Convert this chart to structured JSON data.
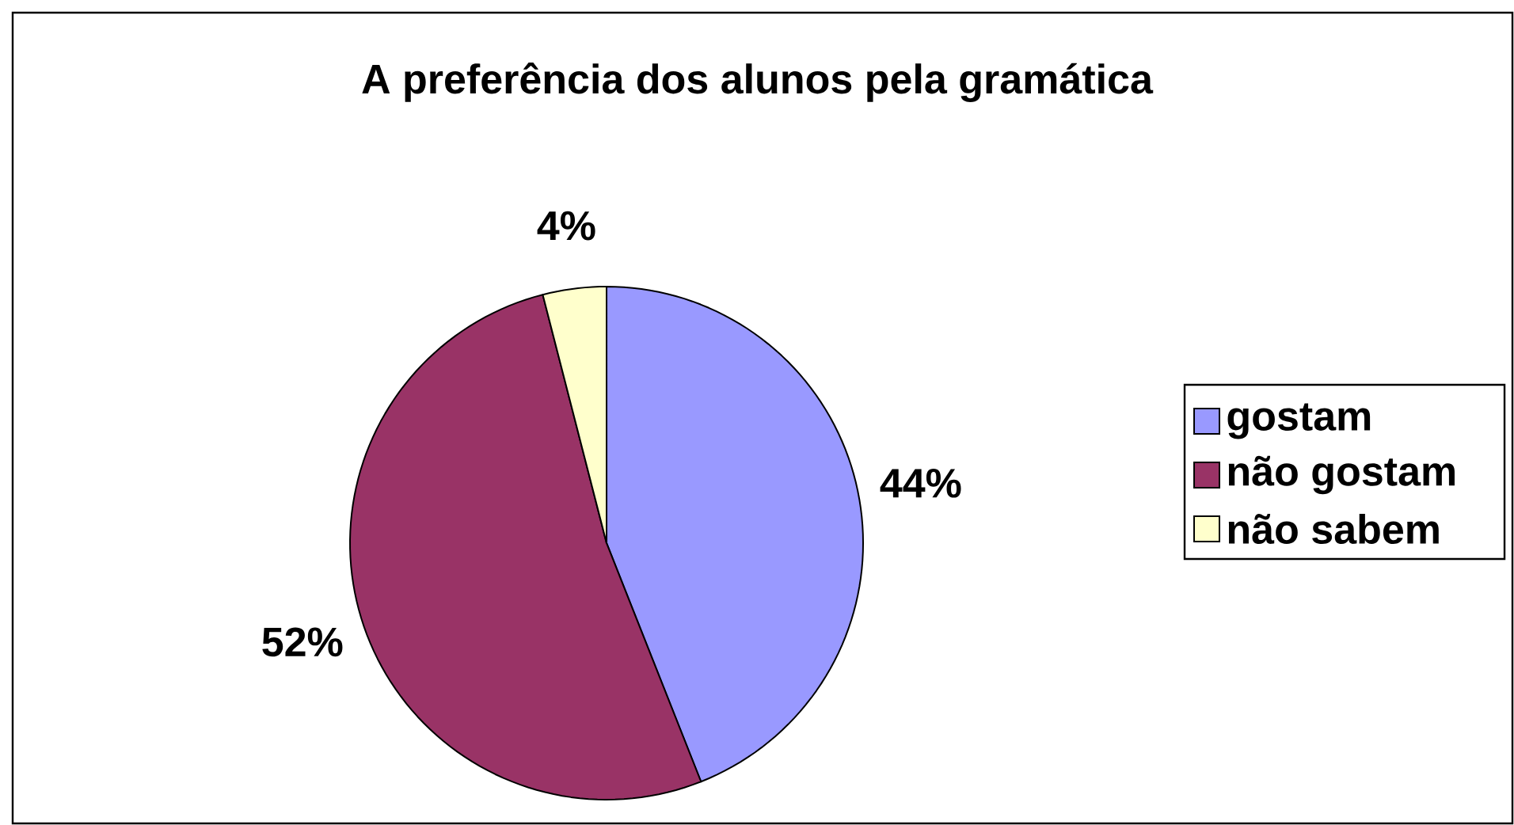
{
  "chart_data": {
    "type": "pie",
    "title": "A preferência dos alunos pela gramática",
    "categories": [
      "gostam",
      "não gostam",
      "não sabem"
    ],
    "values": [
      44,
      52,
      4
    ],
    "value_labels": [
      "44%",
      "52%",
      "4%"
    ],
    "colors": [
      "#9999ff",
      "#993366",
      "#ffffcc"
    ],
    "data_labels": true,
    "legend": "right"
  }
}
